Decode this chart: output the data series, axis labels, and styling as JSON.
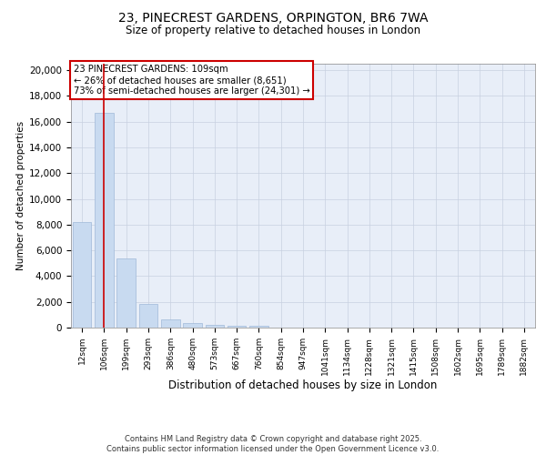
{
  "title": "23, PINECREST GARDENS, ORPINGTON, BR6 7WA",
  "subtitle": "Size of property relative to detached houses in London",
  "xlabel": "Distribution of detached houses by size in London",
  "ylabel": "Number of detached properties",
  "categories": [
    "12sqm",
    "106sqm",
    "199sqm",
    "293sqm",
    "386sqm",
    "480sqm",
    "573sqm",
    "667sqm",
    "760sqm",
    "854sqm",
    "947sqm",
    "1041sqm",
    "1134sqm",
    "1228sqm",
    "1321sqm",
    "1415sqm",
    "1508sqm",
    "1602sqm",
    "1695sqm",
    "1789sqm",
    "1882sqm"
  ],
  "values": [
    8200,
    16700,
    5350,
    1850,
    650,
    350,
    220,
    170,
    120,
    0,
    0,
    0,
    0,
    0,
    0,
    0,
    0,
    0,
    0,
    0,
    0
  ],
  "bar_color": "#c8daf0",
  "bar_edge_color": "#a0b8d8",
  "vline_x": 1.0,
  "vline_color": "#cc0000",
  "annotation_title": "23 PINECREST GARDENS: 109sqm",
  "annotation_line2": "← 26% of detached houses are smaller (8,651)",
  "annotation_line3": "73% of semi-detached houses are larger (24,301) →",
  "annotation_box_color": "#cc0000",
  "ylim": [
    0,
    20500
  ],
  "yticks": [
    0,
    2000,
    4000,
    6000,
    8000,
    10000,
    12000,
    14000,
    16000,
    18000,
    20000
  ],
  "grid_color": "#c8d0e0",
  "background_color": "#e8eef8",
  "footer_line1": "Contains HM Land Registry data © Crown copyright and database right 2025.",
  "footer_line2": "Contains public sector information licensed under the Open Government Licence v3.0."
}
